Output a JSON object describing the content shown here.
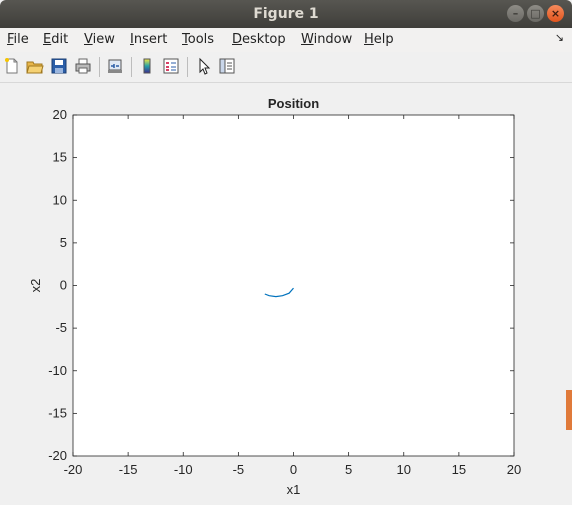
{
  "window": {
    "title": "Figure 1"
  },
  "window_controls": {
    "minimize": "–",
    "maximize": "□",
    "close": "×"
  },
  "menu": [
    "File",
    "Edit",
    "View",
    "Insert",
    "Tools",
    "Desktop",
    "Window",
    "Help"
  ],
  "menu_dock_glyph": "↘",
  "toolbar": {
    "icons": [
      "new-figure-icon",
      "open-file-icon",
      "save-icon",
      "print-icon",
      "link-plot-icon",
      "insert-colorbar-icon",
      "insert-legend-icon",
      "edit-plot-icon",
      "property-inspector-icon"
    ]
  },
  "colors": {
    "line": "#0072bd",
    "axes_bg": "#ffffff",
    "figure_bg": "#f0f0f0"
  },
  "chart_data": {
    "type": "line",
    "title": "Position",
    "xlabel": "x1",
    "ylabel": "x2",
    "xlim": [
      -20,
      20
    ],
    "ylim": [
      -20,
      20
    ],
    "xticks": [
      -20,
      -15,
      -10,
      -5,
      0,
      5,
      10,
      15,
      20
    ],
    "yticks": [
      -20,
      -15,
      -10,
      -5,
      0,
      5,
      10,
      15,
      20
    ],
    "grid": false,
    "series": [
      {
        "x": [
          -2.6,
          -2.2,
          -1.6,
          -1.0,
          -0.4,
          0.0
        ],
        "y": [
          -1.0,
          -1.2,
          -1.3,
          -1.2,
          -0.9,
          -0.3
        ]
      }
    ]
  }
}
